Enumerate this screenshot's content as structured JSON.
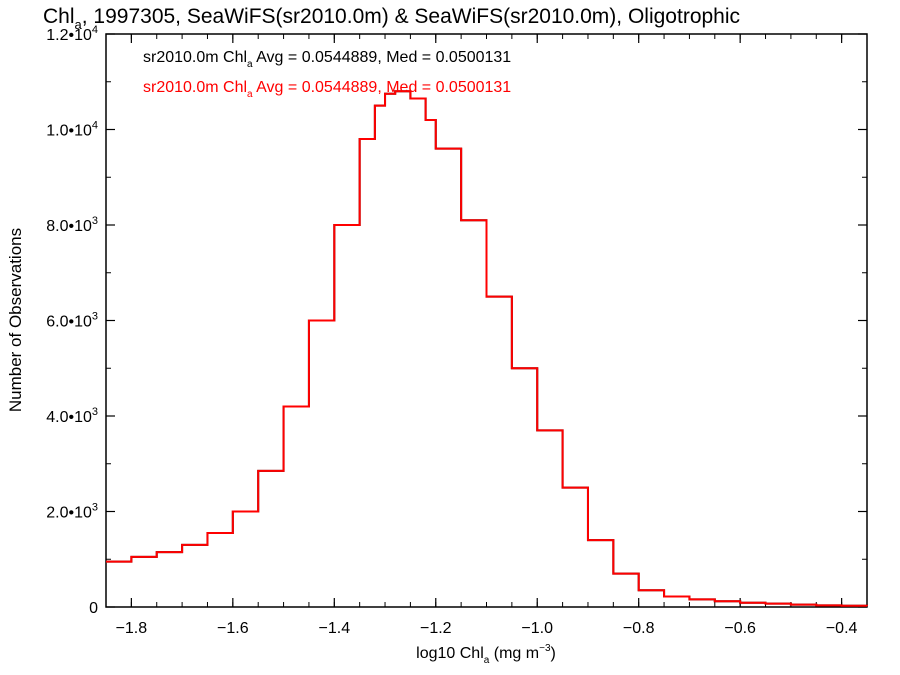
{
  "chart_data": {
    "type": "line",
    "title_pre": "Chl",
    "title_sub": "a",
    "title_post": ", 1997305, SeaWiFS(sr2010.0m) & SeaWiFS(sr2010.0m), Oligotrophic",
    "xlabel_pre": "log10 Chl",
    "xlabel_sub": "a",
    "xlabel_unit": " (mg m",
    "xlabel_sup": "−3",
    "xlabel_close": ")",
    "ylabel": "Number of Observations",
    "xlim": [
      -1.85,
      -0.35
    ],
    "ylim": [
      0,
      12000
    ],
    "x_ticks": [
      -1.8,
      -1.6,
      -1.4,
      -1.2,
      -1.0,
      -0.8,
      -0.6,
      -0.4
    ],
    "x_tick_labels": [
      "−1.8",
      "−1.6",
      "−1.4",
      "−1.2",
      "−1.0",
      "−0.8",
      "−0.6",
      "−0.4"
    ],
    "y_ticks": [
      0,
      2000,
      4000,
      6000,
      8000,
      10000,
      12000
    ],
    "y_tick_labels": [
      {
        "mant": "0",
        "exp": ""
      },
      {
        "mant": "2.0•10",
        "exp": "3"
      },
      {
        "mant": "4.0•10",
        "exp": "3"
      },
      {
        "mant": "6.0•10",
        "exp": "3"
      },
      {
        "mant": "8.0•10",
        "exp": "3"
      },
      {
        "mant": "1.0•10",
        "exp": "4"
      },
      {
        "mant": "1.2•10",
        "exp": "4"
      }
    ],
    "annotations": [
      {
        "pre": "sr2010.0m Chl",
        "sub": "a",
        "post": " Avg = 0.0544889, Med = 0.0500131",
        "color": "#000000"
      },
      {
        "pre": "sr2010.0m Chl",
        "sub": "a",
        "post": " Avg = 0.0544889, Med = 0.0500131",
        "color": "#ff0000"
      }
    ],
    "series": [
      {
        "color": "#000000",
        "x": [
          -1.85,
          -1.8,
          -1.75,
          -1.7,
          -1.65,
          -1.6,
          -1.55,
          -1.5,
          -1.45,
          -1.4,
          -1.35,
          -1.32,
          -1.3,
          -1.28,
          -1.25,
          -1.22,
          -1.2,
          -1.15,
          -1.1,
          -1.05,
          -1.0,
          -0.95,
          -0.9,
          -0.85,
          -0.8,
          -0.75,
          -0.7,
          -0.65,
          -0.6,
          -0.55,
          -0.5,
          -0.45,
          -0.4,
          -0.35
        ],
        "y": [
          950,
          1050,
          1150,
          1300,
          1550,
          2000,
          2850,
          4200,
          6000,
          8000,
          9800,
          10500,
          10750,
          10800,
          10650,
          10200,
          9600,
          8100,
          6500,
          5000,
          3700,
          2500,
          1400,
          700,
          350,
          220,
          160,
          120,
          90,
          70,
          50,
          35,
          25,
          20
        ]
      },
      {
        "color": "#ff0000",
        "x": [
          -1.85,
          -1.8,
          -1.75,
          -1.7,
          -1.65,
          -1.6,
          -1.55,
          -1.5,
          -1.45,
          -1.4,
          -1.35,
          -1.32,
          -1.3,
          -1.28,
          -1.25,
          -1.22,
          -1.2,
          -1.15,
          -1.1,
          -1.05,
          -1.0,
          -0.95,
          -0.9,
          -0.85,
          -0.8,
          -0.75,
          -0.7,
          -0.65,
          -0.6,
          -0.55,
          -0.5,
          -0.45,
          -0.4,
          -0.35
        ],
        "y": [
          950,
          1050,
          1150,
          1300,
          1550,
          2000,
          2850,
          4200,
          6000,
          8000,
          9800,
          10500,
          10750,
          10800,
          10650,
          10200,
          9600,
          8100,
          6500,
          5000,
          3700,
          2500,
          1400,
          700,
          350,
          220,
          160,
          120,
          90,
          70,
          50,
          35,
          25,
          20
        ]
      }
    ]
  }
}
